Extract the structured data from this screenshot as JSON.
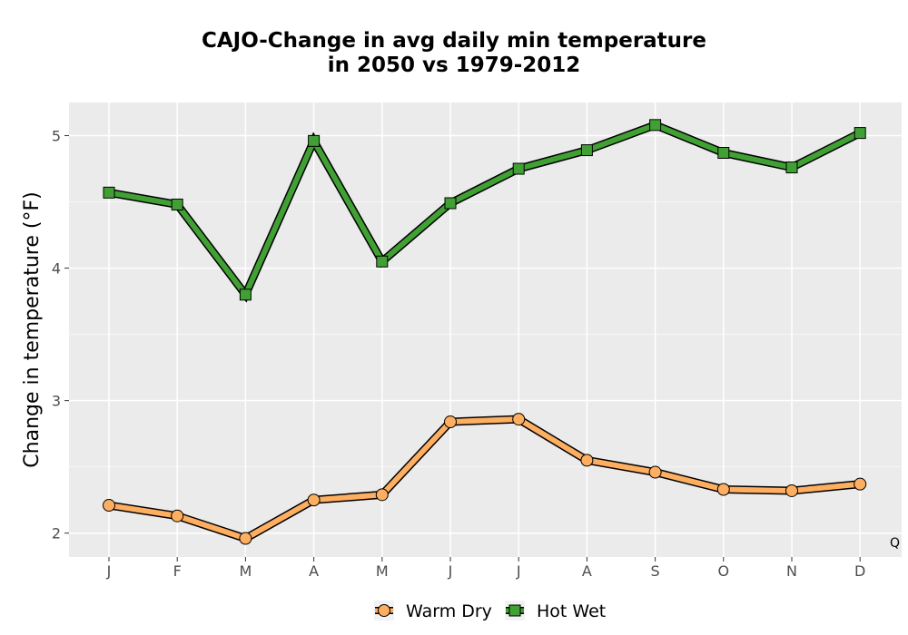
{
  "chart_data": {
    "type": "line",
    "title_line1": "CAJO-Change in avg daily min temperature",
    "title_line2": "in 2050 vs 1979-2012",
    "xlabel": "",
    "ylabel": "Change in temperature (°F)",
    "categories": [
      "J",
      "F",
      "M",
      "A",
      "M",
      "J",
      "J",
      "A",
      "S",
      "O",
      "N",
      "D"
    ],
    "ylim": [
      1.82,
      5.25
    ],
    "yticks": [
      2,
      3,
      4,
      5
    ],
    "grid": true,
    "legend_position": "bottom",
    "corner_note": "Q",
    "series": [
      {
        "name": "Warm Dry",
        "marker": "circle",
        "color": "#fdae61",
        "values": [
          2.21,
          2.13,
          1.96,
          2.25,
          2.29,
          2.84,
          2.86,
          2.55,
          2.46,
          2.33,
          2.32,
          2.37
        ]
      },
      {
        "name": "Hot Wet",
        "marker": "square",
        "color": "#41a034",
        "values": [
          4.57,
          4.48,
          3.8,
          4.96,
          4.05,
          4.49,
          4.75,
          4.89,
          5.08,
          4.87,
          4.76,
          5.02
        ]
      }
    ]
  }
}
